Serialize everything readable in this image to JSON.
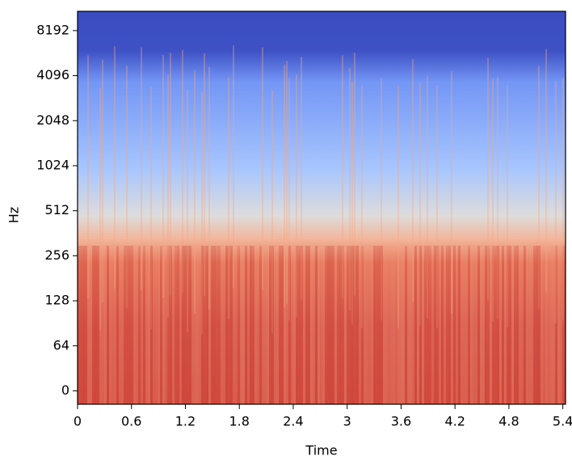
{
  "chart_data": {
    "type": "spectrogram",
    "xlabel": "Time",
    "ylabel": "Hz",
    "xlim": [
      0,
      5.43
    ],
    "xticks": [
      0,
      0.6,
      1.2,
      1.8,
      2.4,
      3,
      3.6,
      4.2,
      4.8,
      5.4
    ],
    "ylim": [
      -19,
      11025
    ],
    "yticks": [
      0,
      64,
      128,
      256,
      512,
      1024,
      2048,
      4096,
      8192
    ],
    "yscale": "symlog",
    "linthresh": 64
  }
}
